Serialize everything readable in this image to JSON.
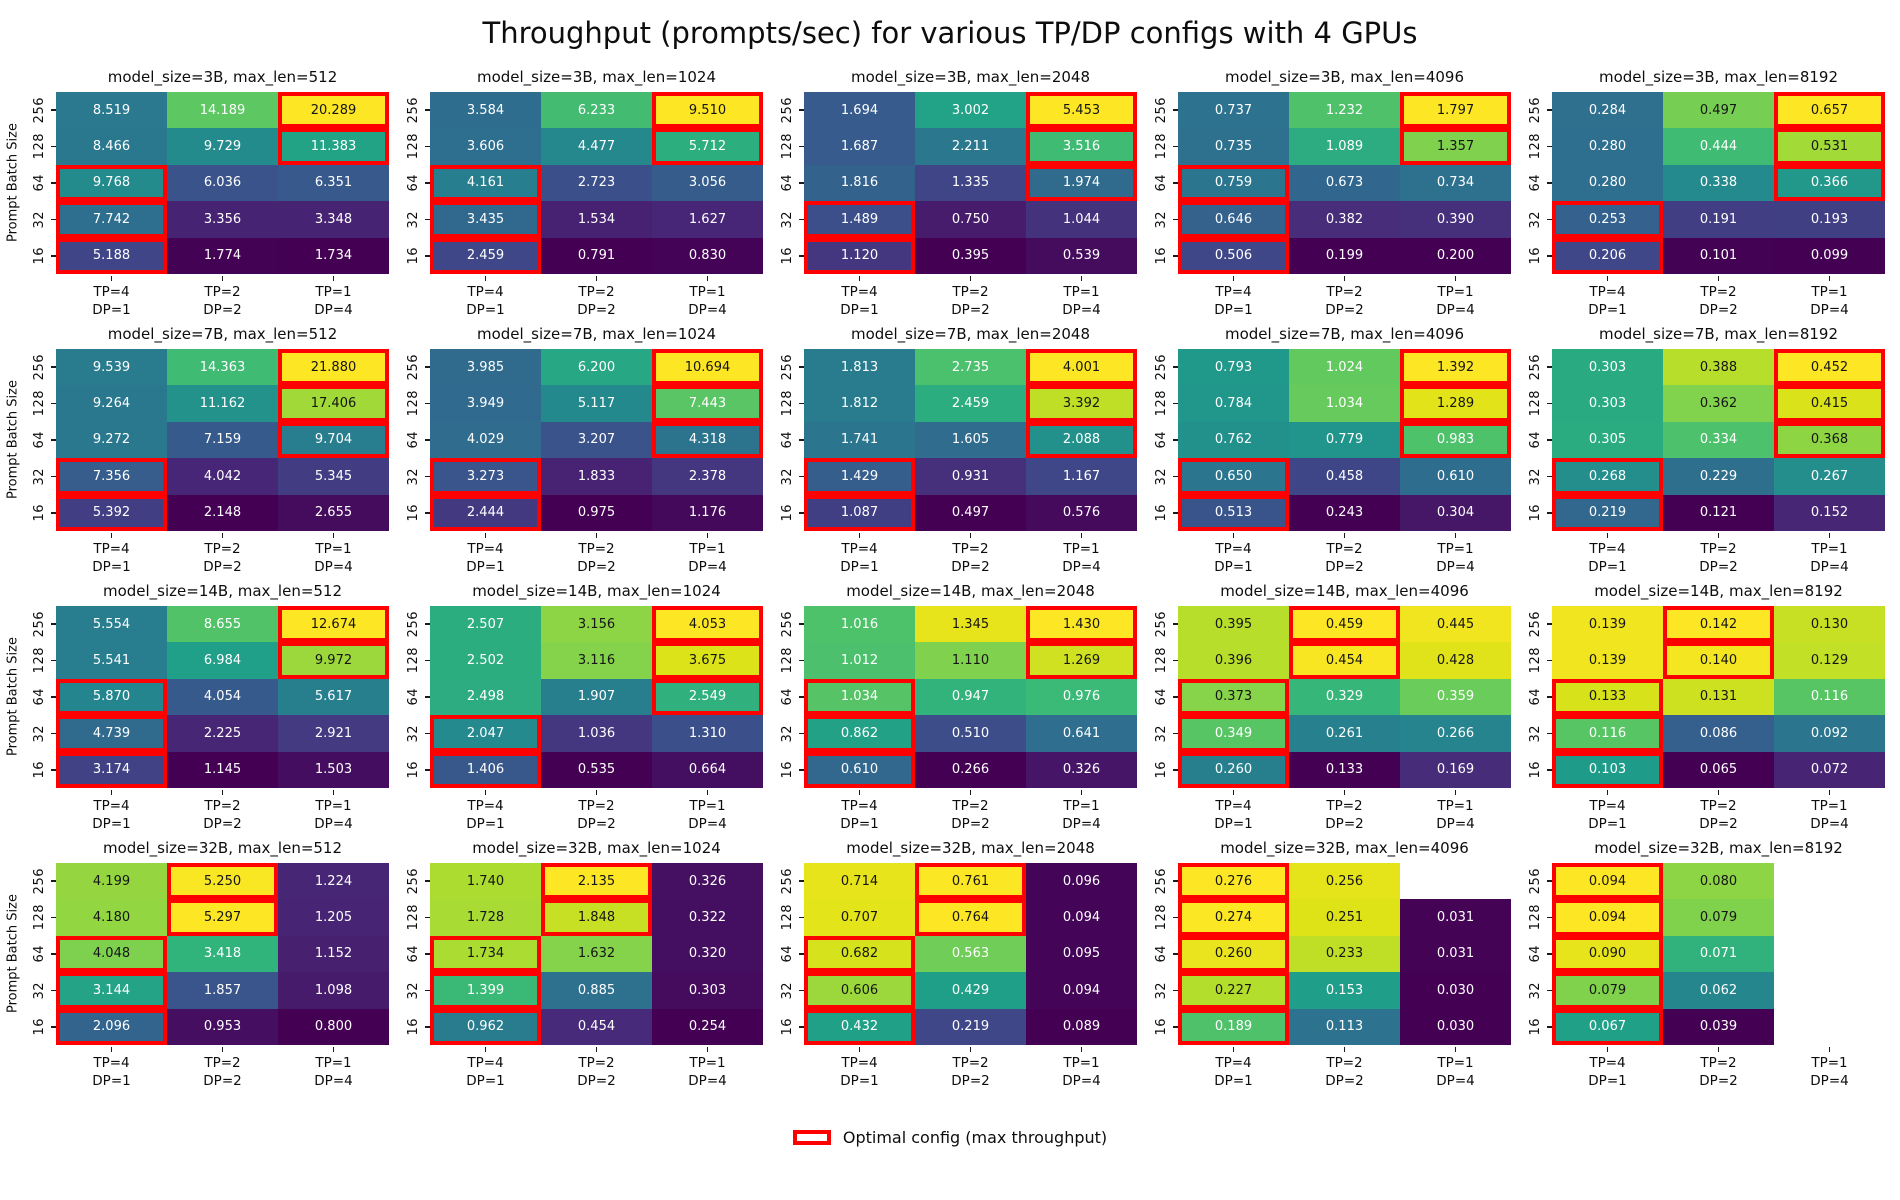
{
  "figure": {
    "title": "Throughput (prompts/sec) for various TP/DP configs with 4 GPUs",
    "ylabel": "Prompt Batch Size",
    "legend_label": "Optimal config (max throughput)",
    "optimal_box_color": "#ff0000",
    "background_color": "#ffffff"
  },
  "chart_data": {
    "type": "heatmap",
    "colormap": "viridis",
    "normalization": "per-subplot min-max",
    "optimal_marker": "red rectangle on per-row maximum value",
    "y_axis_label": "Prompt Batch Size",
    "y_categories": [
      "256",
      "128",
      "64",
      "32",
      "16"
    ],
    "x_categories": [
      [
        "TP=4",
        "DP=1"
      ],
      [
        "TP=2",
        "DP=2"
      ],
      [
        "TP=1",
        "DP=4"
      ]
    ],
    "subplots": [
      {
        "title": "model_size=3B, max_len=512",
        "model_size": "3B",
        "max_len": 512,
        "values": [
          [
            8.519,
            14.189,
            20.289
          ],
          [
            8.466,
            9.729,
            11.383
          ],
          [
            9.768,
            6.036,
            6.351
          ],
          [
            7.742,
            3.356,
            3.348
          ],
          [
            5.188,
            1.774,
            1.734
          ]
        ]
      },
      {
        "title": "model_size=3B, max_len=1024",
        "model_size": "3B",
        "max_len": 1024,
        "values": [
          [
            3.584,
            6.233,
            9.51
          ],
          [
            3.606,
            4.477,
            5.712
          ],
          [
            4.161,
            2.723,
            3.056
          ],
          [
            3.435,
            1.534,
            1.627
          ],
          [
            2.459,
            0.791,
            0.83
          ]
        ]
      },
      {
        "title": "model_size=3B, max_len=2048",
        "model_size": "3B",
        "max_len": 2048,
        "values": [
          [
            1.694,
            3.002,
            5.453
          ],
          [
            1.687,
            2.211,
            3.516
          ],
          [
            1.816,
            1.335,
            1.974
          ],
          [
            1.489,
            0.75,
            1.044
          ],
          [
            1.12,
            0.395,
            0.539
          ]
        ]
      },
      {
        "title": "model_size=3B, max_len=4096",
        "model_size": "3B",
        "max_len": 4096,
        "values": [
          [
            0.737,
            1.232,
            1.797
          ],
          [
            0.735,
            1.089,
            1.357
          ],
          [
            0.759,
            0.673,
            0.734
          ],
          [
            0.646,
            0.382,
            0.39
          ],
          [
            0.506,
            0.199,
            0.2
          ]
        ]
      },
      {
        "title": "model_size=3B, max_len=8192",
        "model_size": "3B",
        "max_len": 8192,
        "values": [
          [
            0.284,
            0.497,
            0.657
          ],
          [
            0.28,
            0.444,
            0.531
          ],
          [
            0.28,
            0.338,
            0.366
          ],
          [
            0.253,
            0.191,
            0.193
          ],
          [
            0.206,
            0.101,
            0.099
          ]
        ]
      },
      {
        "title": "model_size=7B, max_len=512",
        "model_size": "7B",
        "max_len": 512,
        "values": [
          [
            9.539,
            14.363,
            21.88
          ],
          [
            9.264,
            11.162,
            17.406
          ],
          [
            9.272,
            7.159,
            9.704
          ],
          [
            7.356,
            4.042,
            5.345
          ],
          [
            5.392,
            2.148,
            2.655
          ]
        ]
      },
      {
        "title": "model_size=7B, max_len=1024",
        "model_size": "7B",
        "max_len": 1024,
        "values": [
          [
            3.985,
            6.2,
            10.694
          ],
          [
            3.949,
            5.117,
            7.443
          ],
          [
            4.029,
            3.207,
            4.318
          ],
          [
            3.273,
            1.833,
            2.378
          ],
          [
            2.444,
            0.975,
            1.176
          ]
        ]
      },
      {
        "title": "model_size=7B, max_len=2048",
        "model_size": "7B",
        "max_len": 2048,
        "values": [
          [
            1.813,
            2.735,
            4.001
          ],
          [
            1.812,
            2.459,
            3.392
          ],
          [
            1.741,
            1.605,
            2.088
          ],
          [
            1.429,
            0.931,
            1.167
          ],
          [
            1.087,
            0.497,
            0.576
          ]
        ]
      },
      {
        "title": "model_size=7B, max_len=4096",
        "model_size": "7B",
        "max_len": 4096,
        "values": [
          [
            0.793,
            1.024,
            1.392
          ],
          [
            0.784,
            1.034,
            1.289
          ],
          [
            0.762,
            0.779,
            0.983
          ],
          [
            0.65,
            0.458,
            0.61
          ],
          [
            0.513,
            0.243,
            0.304
          ]
        ]
      },
      {
        "title": "model_size=7B, max_len=8192",
        "model_size": "7B",
        "max_len": 8192,
        "values": [
          [
            0.303,
            0.388,
            0.452
          ],
          [
            0.303,
            0.362,
            0.415
          ],
          [
            0.305,
            0.334,
            0.368
          ],
          [
            0.268,
            0.229,
            0.267
          ],
          [
            0.219,
            0.121,
            0.152
          ]
        ]
      },
      {
        "title": "model_size=14B, max_len=512",
        "model_size": "14B",
        "max_len": 512,
        "values": [
          [
            5.554,
            8.655,
            12.674
          ],
          [
            5.541,
            6.984,
            9.972
          ],
          [
            5.87,
            4.054,
            5.617
          ],
          [
            4.739,
            2.225,
            2.921
          ],
          [
            3.174,
            1.145,
            1.503
          ]
        ]
      },
      {
        "title": "model_size=14B, max_len=1024",
        "model_size": "14B",
        "max_len": 1024,
        "values": [
          [
            2.507,
            3.156,
            4.053
          ],
          [
            2.502,
            3.116,
            3.675
          ],
          [
            2.498,
            1.907,
            2.549
          ],
          [
            2.047,
            1.036,
            1.31
          ],
          [
            1.406,
            0.535,
            0.664
          ]
        ]
      },
      {
        "title": "model_size=14B, max_len=2048",
        "model_size": "14B",
        "max_len": 2048,
        "values": [
          [
            1.016,
            1.345,
            1.43
          ],
          [
            1.012,
            1.11,
            1.269
          ],
          [
            1.034,
            0.947,
            0.976
          ],
          [
            0.862,
            0.51,
            0.641
          ],
          [
            0.61,
            0.266,
            0.326
          ]
        ]
      },
      {
        "title": "model_size=14B, max_len=4096",
        "model_size": "14B",
        "max_len": 4096,
        "values": [
          [
            0.395,
            0.459,
            0.445
          ],
          [
            0.396,
            0.454,
            0.428
          ],
          [
            0.373,
            0.329,
            0.359
          ],
          [
            0.349,
            0.261,
            0.266
          ],
          [
            0.26,
            0.133,
            0.169
          ]
        ]
      },
      {
        "title": "model_size=14B, max_len=8192",
        "model_size": "14B",
        "max_len": 8192,
        "values": [
          [
            0.139,
            0.142,
            0.13
          ],
          [
            0.139,
            0.14,
            0.129
          ],
          [
            0.133,
            0.131,
            0.116
          ],
          [
            0.116,
            0.086,
            0.092
          ],
          [
            0.103,
            0.065,
            0.072
          ]
        ]
      },
      {
        "title": "model_size=32B, max_len=512",
        "model_size": "32B",
        "max_len": 512,
        "values": [
          [
            4.199,
            5.25,
            1.224
          ],
          [
            4.18,
            5.297,
            1.205
          ],
          [
            4.048,
            3.418,
            1.152
          ],
          [
            3.144,
            1.857,
            1.098
          ],
          [
            2.096,
            0.953,
            0.8
          ]
        ]
      },
      {
        "title": "model_size=32B, max_len=1024",
        "model_size": "32B",
        "max_len": 1024,
        "values": [
          [
            1.74,
            2.135,
            0.326
          ],
          [
            1.728,
            1.848,
            0.322
          ],
          [
            1.734,
            1.632,
            0.32
          ],
          [
            1.399,
            0.885,
            0.303
          ],
          [
            0.962,
            0.454,
            0.254
          ]
        ]
      },
      {
        "title": "model_size=32B, max_len=2048",
        "model_size": "32B",
        "max_len": 2048,
        "values": [
          [
            0.714,
            0.761,
            0.096
          ],
          [
            0.707,
            0.764,
            0.094
          ],
          [
            0.682,
            0.563,
            0.095
          ],
          [
            0.606,
            0.429,
            0.094
          ],
          [
            0.432,
            0.219,
            0.089
          ]
        ]
      },
      {
        "title": "model_size=32B, max_len=4096",
        "model_size": "32B",
        "max_len": 4096,
        "values": [
          [
            0.276,
            0.256,
            null
          ],
          [
            0.274,
            0.251,
            0.031
          ],
          [
            0.26,
            0.233,
            0.031
          ],
          [
            0.227,
            0.153,
            0.03
          ],
          [
            0.189,
            0.113,
            0.03
          ]
        ]
      },
      {
        "title": "model_size=32B, max_len=8192",
        "model_size": "32B",
        "max_len": 8192,
        "values": [
          [
            0.094,
            0.08,
            null
          ],
          [
            0.094,
            0.079,
            null
          ],
          [
            0.09,
            0.071,
            null
          ],
          [
            0.079,
            0.062,
            null
          ],
          [
            0.067,
            0.039,
            null
          ]
        ]
      }
    ]
  }
}
